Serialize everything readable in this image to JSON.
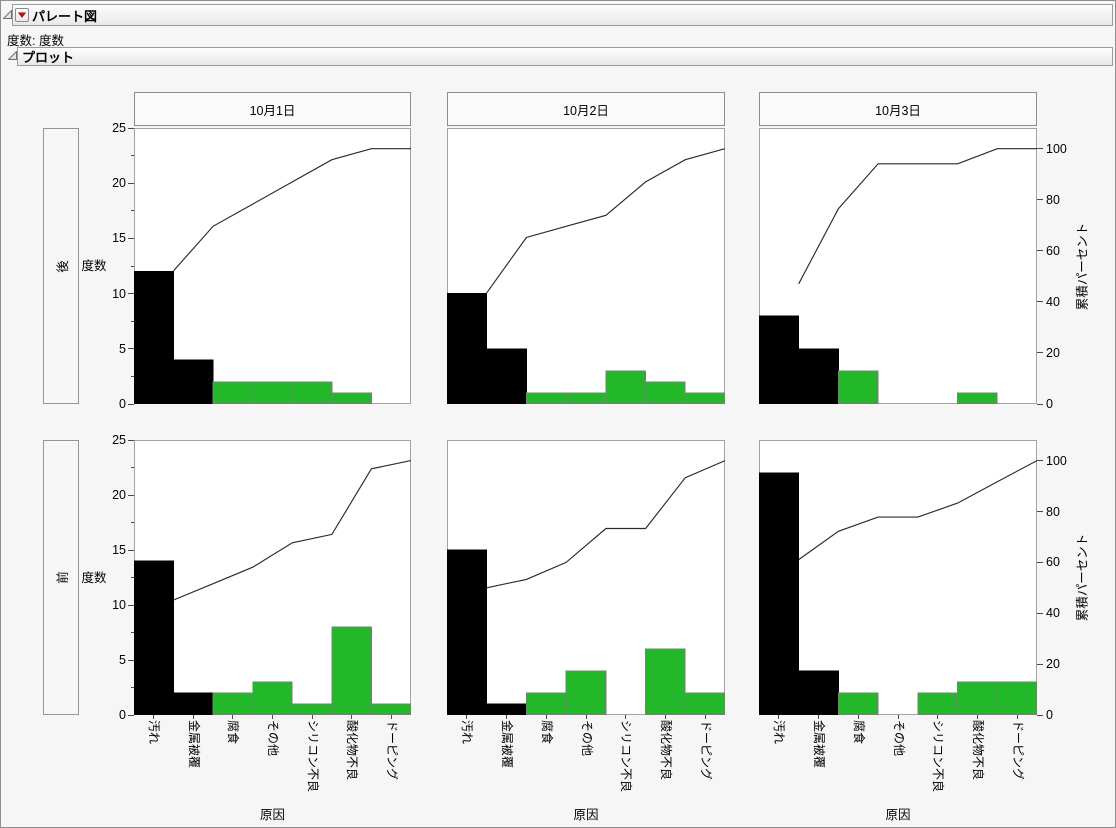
{
  "report": {
    "title": "パレート図",
    "note": "度数: 度数",
    "plot_section": "プロット"
  },
  "icons": {
    "disclosure_triangle": "open-disclosure-triangle",
    "red_triangle_menu": "red-triangle-menu"
  },
  "colors": {
    "bar_highlight": "#000000",
    "bar_normal": "#22B82A",
    "bar_border": "#7d7d7d",
    "cumulative_line": "#2b2b2b",
    "plot_frame": "#a3a3a3",
    "plot_background": "#ffffff",
    "window_background": "#f6f6f6",
    "red_menu_triangle": "#c51111"
  },
  "chart_data": {
    "type": "bar",
    "subtype": "pareto-grid-with-cumulative-line",
    "categories": [
      "汚れ",
      "金属被覆",
      "腐食",
      "その他",
      "シリコン不良",
      "酸化物不良",
      "ドーピング"
    ],
    "col_headers": [
      "10月1日",
      "10月2日",
      "10月3日"
    ],
    "row_headers": [
      "後",
      "前"
    ],
    "x_axis_label": "原因",
    "y_left_label": "度数",
    "y_right_label": "累積パーセント",
    "ylim": [
      0,
      25
    ],
    "y_right_lim": [
      0,
      100
    ],
    "y_left_ticks": [
      0,
      5,
      10,
      15,
      20,
      25
    ],
    "y_left_minor_ticks": [
      2.5,
      7.5,
      12.5,
      17.5,
      22.5
    ],
    "y_right_ticks": [
      0,
      20,
      40,
      60,
      80,
      100
    ],
    "black_bar_categories": [
      "汚れ",
      "金属被覆"
    ],
    "grid": false,
    "cells": [
      {
        "row": "後",
        "col": "10月1日",
        "values": [
          12,
          4,
          2,
          2,
          2,
          1,
          0
        ],
        "total": 23,
        "cum_counts": [
          12,
          16,
          18,
          20,
          22,
          23,
          23
        ],
        "cum_pct": [
          52.2,
          69.6,
          78.3,
          87.0,
          95.7,
          100,
          100
        ]
      },
      {
        "row": "後",
        "col": "10月2日",
        "values": [
          10,
          5,
          1,
          1,
          3,
          2,
          1
        ],
        "total": 23,
        "cum_counts": [
          10,
          15,
          16,
          17,
          20,
          22,
          23
        ],
        "cum_pct": [
          43.5,
          65.2,
          69.6,
          73.9,
          87.0,
          95.7,
          100
        ]
      },
      {
        "row": "後",
        "col": "10月3日",
        "values": [
          8,
          5,
          3,
          0,
          0,
          1,
          0
        ],
        "total": 17,
        "cum_counts": [
          8,
          13,
          16,
          16,
          16,
          17,
          17
        ],
        "cum_pct": [
          47.1,
          76.5,
          94.1,
          94.1,
          94.1,
          100,
          100
        ]
      },
      {
        "row": "前",
        "col": "10月1日",
        "values": [
          14,
          2,
          2,
          3,
          1,
          8,
          1
        ],
        "total": 31,
        "cum_counts": [
          14,
          16,
          18,
          21,
          22,
          30,
          31
        ],
        "cum_pct": [
          45.2,
          51.6,
          58.1,
          67.7,
          71.0,
          96.8,
          100
        ]
      },
      {
        "row": "前",
        "col": "10月2日",
        "values": [
          15,
          1,
          2,
          4,
          0,
          6,
          2
        ],
        "total": 30,
        "cum_counts": [
          15,
          16,
          18,
          22,
          22,
          28,
          30
        ],
        "cum_pct": [
          50.0,
          53.3,
          60.0,
          73.3,
          73.3,
          93.3,
          100
        ]
      },
      {
        "row": "前",
        "col": "10月3日",
        "values": [
          22,
          4,
          2,
          0,
          2,
          3,
          3
        ],
        "total": 36,
        "cum_counts": [
          22,
          26,
          28,
          28,
          30,
          33,
          36
        ],
        "cum_pct": [
          61.1,
          72.2,
          77.8,
          77.8,
          83.3,
          91.7,
          100
        ]
      }
    ]
  }
}
